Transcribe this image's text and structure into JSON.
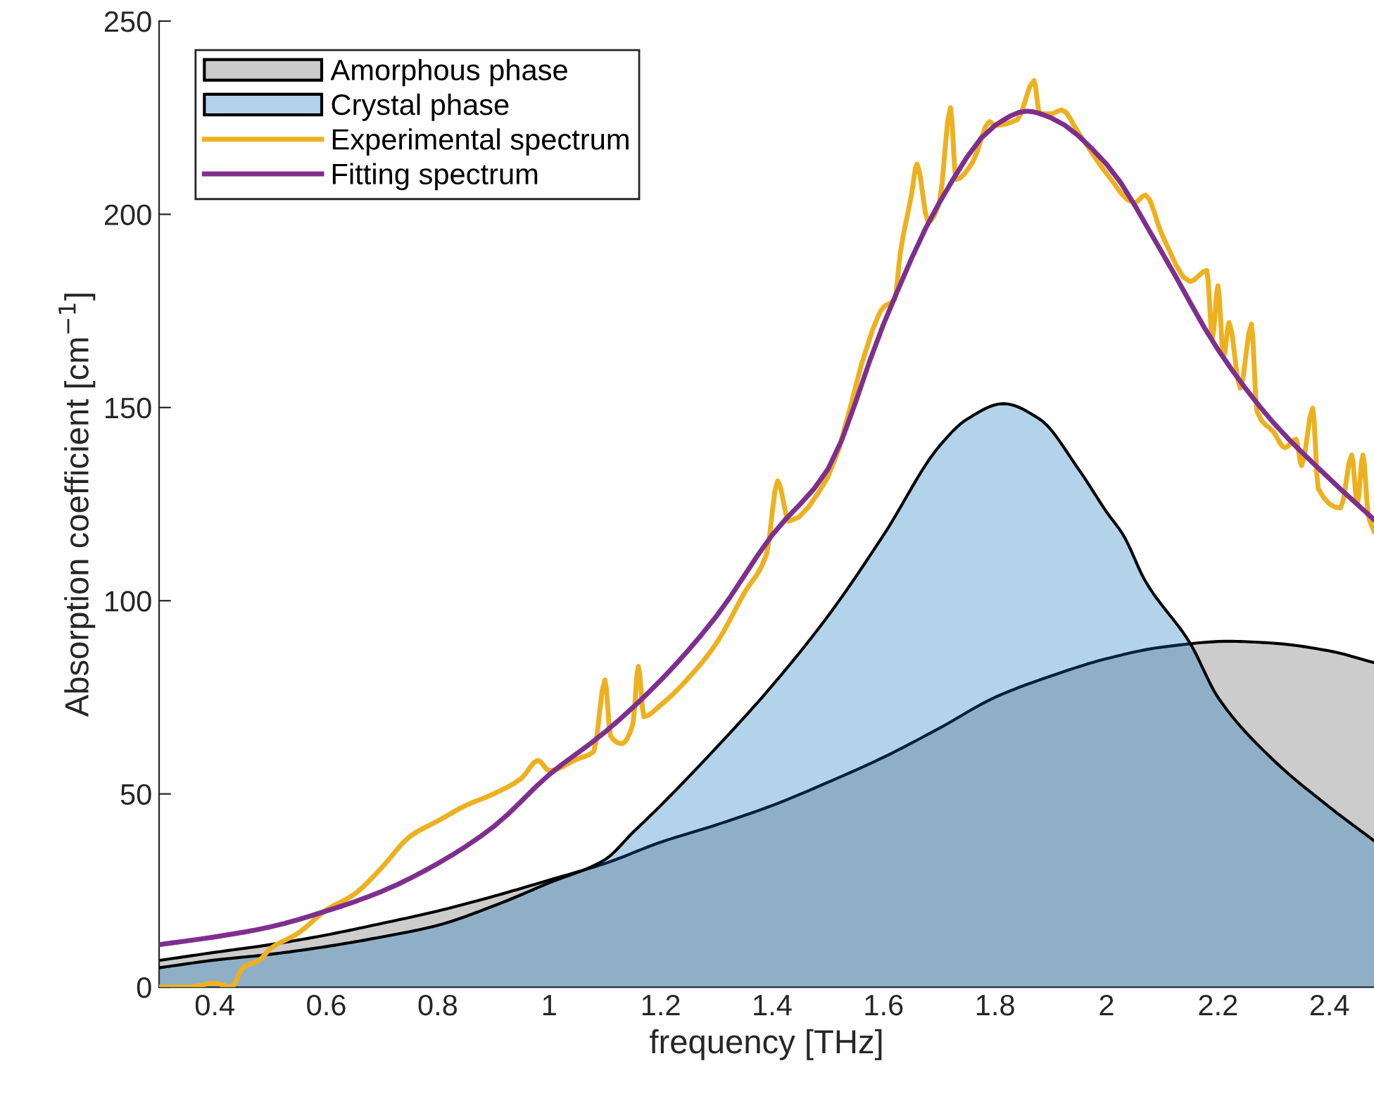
{
  "chart_data": {
    "type": "area",
    "xlabel": "frequency [THz]",
    "ylabel": "Absorption coefficient [cm$^{−1}$]",
    "xlim": [
      0.3,
      2.48
    ],
    "ylim": [
      0,
      250
    ],
    "xticks": [
      0.4,
      0.6,
      0.8,
      1,
      1.2,
      1.4,
      1.6,
      1.8,
      2,
      2.2,
      2.4
    ],
    "yticks": [
      0,
      50,
      100,
      150,
      200,
      250
    ],
    "grid": false,
    "legend": "top left",
    "series": [
      {
        "name": "Amorphous phase",
        "color": "#cccccc",
        "x": [
          0.3,
          0.4,
          0.5,
          0.6,
          0.7,
          0.8,
          0.9,
          1.0,
          1.1,
          1.2,
          1.3,
          1.4,
          1.5,
          1.6,
          1.7,
          1.8,
          1.9,
          2.0,
          2.1,
          2.22,
          2.3,
          2.4,
          2.48
        ],
        "values": [
          6.9,
          9,
          11,
          13.5,
          16.5,
          19.7,
          23.5,
          27.7,
          32,
          37.5,
          42,
          47,
          53,
          59.5,
          67,
          75,
          80.5,
          85,
          88,
          89.5,
          89,
          87,
          84
        ]
      },
      {
        "name": "Crystal phase",
        "color": "#b3d3eb",
        "x": [
          0.3,
          0.4,
          0.5,
          0.6,
          0.7,
          0.8,
          0.9,
          1.0,
          1.1,
          1.15,
          1.2,
          1.3,
          1.4,
          1.5,
          1.6,
          1.7,
          1.75,
          1.815,
          1.88,
          1.95,
          2.0,
          2.03,
          2.07,
          2.15,
          2.2,
          2.3,
          2.4,
          2.48
        ],
        "values": [
          5,
          7,
          8.5,
          10.5,
          13,
          16,
          21,
          27,
          33,
          40,
          47,
          62,
          78,
          96,
          117,
          140,
          147,
          151,
          147,
          134,
          123,
          117,
          105,
          89,
          75,
          58.7,
          46.6,
          37.9
        ]
      },
      {
        "name": "Experimental spectrum",
        "type": "line",
        "color": "#edb120",
        "x": [
          0.3,
          0.35,
          0.4,
          0.43,
          0.45,
          0.48,
          0.5,
          0.55,
          0.6,
          0.65,
          0.7,
          0.75,
          0.8,
          0.85,
          0.9,
          0.95,
          0.98,
          1.0,
          1.05,
          1.08,
          1.1,
          1.11,
          1.13,
          1.15,
          1.16,
          1.17,
          1.2,
          1.25,
          1.3,
          1.35,
          1.39,
          1.41,
          1.43,
          1.5,
          1.58,
          1.6,
          1.62,
          1.63,
          1.65,
          1.66,
          1.68,
          1.7,
          1.72,
          1.73,
          1.76,
          1.79,
          1.8,
          1.84,
          1.87,
          1.88,
          1.9,
          1.92,
          1.95,
          2.0,
          2.05,
          2.07,
          2.1,
          2.15,
          2.18,
          2.19,
          2.2,
          2.21,
          2.22,
          2.24,
          2.26,
          2.27,
          2.3,
          2.32,
          2.34,
          2.35,
          2.37,
          2.38,
          2.42,
          2.44,
          2.45,
          2.46,
          2.47,
          2.48
        ],
        "values": [
          0,
          0,
          1,
          0,
          5,
          7,
          10,
          14,
          20,
          24,
          31,
          39,
          43,
          47,
          50,
          54,
          58.7,
          56,
          59,
          61,
          79.5,
          65,
          63,
          68,
          83,
          70,
          73,
          80,
          89,
          102,
          112,
          131,
          120.6,
          132,
          170,
          176,
          178,
          190,
          205,
          213,
          198,
          203,
          227.6,
          209,
          213.5,
          224,
          223,
          224.5,
          234.6,
          226,
          226,
          227,
          221,
          210.6,
          203,
          205,
          194.6,
          182.6,
          185.5,
          168,
          181.5,
          163,
          172,
          155,
          171.6,
          149,
          143.6,
          139.6,
          141.8,
          135,
          149.8,
          129,
          124,
          137.7,
          125,
          137.7,
          122,
          118
        ]
      },
      {
        "name": "Fitting spectrum",
        "type": "line",
        "color": "#7e2f8e",
        "x": [
          0.3,
          0.4,
          0.5,
          0.6,
          0.7,
          0.8,
          0.9,
          1.0,
          1.1,
          1.2,
          1.3,
          1.4,
          1.5,
          1.6,
          1.7,
          1.8,
          1.857,
          1.9,
          2.0,
          2.1,
          2.2,
          2.3,
          2.4,
          2.48
        ],
        "values": [
          11,
          13,
          15.6,
          19.7,
          24.8,
          32,
          41.5,
          55,
          66,
          79.4,
          96,
          117,
          134,
          171.6,
          203,
          223,
          226.7,
          225,
          213,
          190,
          165,
          146,
          131.6,
          121
        ]
      }
    ]
  }
}
